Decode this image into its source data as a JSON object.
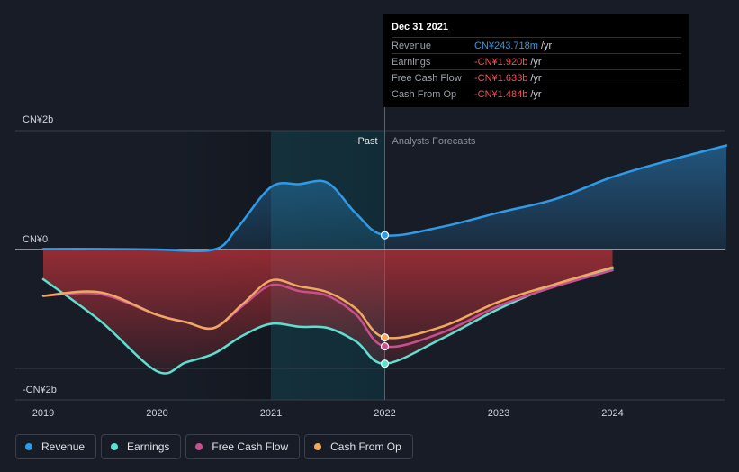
{
  "tooltip": {
    "date": "Dec 31 2021",
    "rows": [
      {
        "label": "Revenue",
        "value": "CN¥243.718m",
        "unit": "/yr",
        "color": "#2f9be8"
      },
      {
        "label": "Earnings",
        "value": "-CN¥1.920b",
        "unit": "/yr",
        "color": "#ff4d4d"
      },
      {
        "label": "Free Cash Flow",
        "value": "-CN¥1.633b",
        "unit": "/yr",
        "color": "#ff4d4d"
      },
      {
        "label": "Cash From Op",
        "value": "-CN¥1.484b",
        "unit": "/yr",
        "color": "#ff4d4d"
      }
    ]
  },
  "legend": [
    {
      "label": "Revenue",
      "color": "#2f9be8"
    },
    {
      "label": "Earnings",
      "color": "#5de0d0"
    },
    {
      "label": "Free Cash Flow",
      "color": "#c8508f"
    },
    {
      "label": "Cash From Op",
      "color": "#f0a860"
    }
  ],
  "chart_data": {
    "type": "line",
    "y_tick_labels": [
      "CN¥2b",
      "CN¥0",
      "-CN¥2b"
    ],
    "x_tick_labels": [
      "2019",
      "2020",
      "2021",
      "2022",
      "2023",
      "2024"
    ],
    "region_labels": {
      "past": "Past",
      "forecast": "Analysts Forecasts"
    },
    "ylim": [
      -2,
      2
    ],
    "xlim": [
      2019,
      2025
    ],
    "past_end": 2022,
    "grid": true,
    "series": [
      {
        "name": "Revenue",
        "color": "#2f9be8",
        "points": [
          [
            2019.0,
            0.01
          ],
          [
            2019.5,
            0.01
          ],
          [
            2020.0,
            0.0
          ],
          [
            2020.5,
            0.0
          ],
          [
            2020.7,
            0.35
          ],
          [
            2021.0,
            1.05
          ],
          [
            2021.25,
            1.1
          ],
          [
            2021.5,
            1.12
          ],
          [
            2021.75,
            0.6
          ],
          [
            2022.0,
            0.24
          ],
          [
            2022.5,
            0.38
          ],
          [
            2023.0,
            0.62
          ],
          [
            2023.5,
            0.85
          ],
          [
            2024.0,
            1.22
          ],
          [
            2024.5,
            1.5
          ],
          [
            2025.0,
            1.75
          ]
        ]
      },
      {
        "name": "Earnings",
        "color": "#5de0d0",
        "points": [
          [
            2019.0,
            -0.5
          ],
          [
            2019.5,
            -1.2
          ],
          [
            2020.0,
            -2.05
          ],
          [
            2020.25,
            -1.9
          ],
          [
            2020.5,
            -1.75
          ],
          [
            2020.75,
            -1.45
          ],
          [
            2021.0,
            -1.25
          ],
          [
            2021.25,
            -1.3
          ],
          [
            2021.5,
            -1.32
          ],
          [
            2021.75,
            -1.55
          ],
          [
            2022.0,
            -1.92
          ],
          [
            2022.5,
            -1.5
          ],
          [
            2023.0,
            -1.0
          ],
          [
            2023.5,
            -0.6
          ],
          [
            2024.0,
            -0.33
          ]
        ]
      },
      {
        "name": "Free Cash Flow",
        "color": "#c8508f",
        "points": [
          [
            2019.0,
            -0.78
          ],
          [
            2019.5,
            -0.75
          ],
          [
            2020.0,
            -1.1
          ],
          [
            2020.25,
            -1.22
          ],
          [
            2020.5,
            -1.32
          ],
          [
            2020.75,
            -0.95
          ],
          [
            2021.0,
            -0.6
          ],
          [
            2021.25,
            -0.7
          ],
          [
            2021.5,
            -0.78
          ],
          [
            2021.75,
            -1.1
          ],
          [
            2022.0,
            -1.63
          ],
          [
            2022.5,
            -1.4
          ],
          [
            2023.0,
            -0.95
          ],
          [
            2023.5,
            -0.62
          ],
          [
            2024.0,
            -0.35
          ]
        ]
      },
      {
        "name": "Cash From Op",
        "color": "#f0a860",
        "points": [
          [
            2019.0,
            -0.78
          ],
          [
            2019.5,
            -0.72
          ],
          [
            2020.0,
            -1.1
          ],
          [
            2020.25,
            -1.22
          ],
          [
            2020.5,
            -1.32
          ],
          [
            2020.75,
            -0.92
          ],
          [
            2021.0,
            -0.52
          ],
          [
            2021.25,
            -0.62
          ],
          [
            2021.5,
            -0.72
          ],
          [
            2021.75,
            -1.0
          ],
          [
            2022.0,
            -1.48
          ],
          [
            2022.5,
            -1.3
          ],
          [
            2023.0,
            -0.88
          ],
          [
            2023.5,
            -0.58
          ],
          [
            2024.0,
            -0.3
          ]
        ]
      }
    ]
  }
}
